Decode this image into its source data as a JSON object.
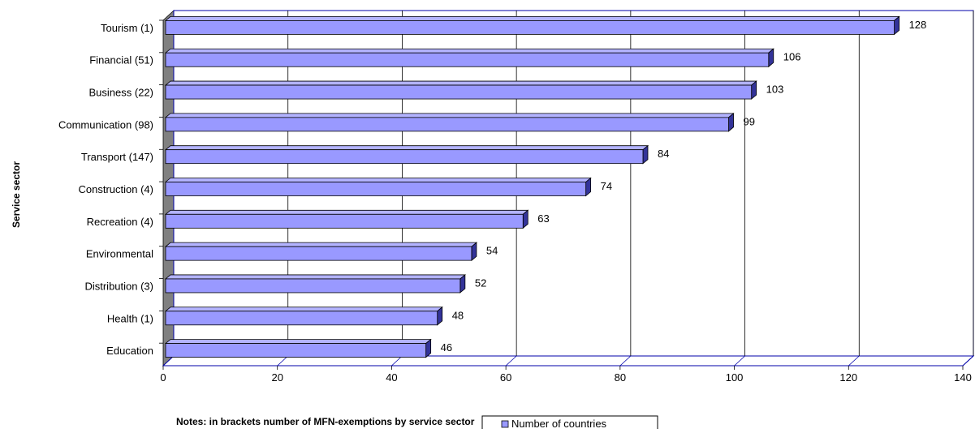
{
  "chart_data": {
    "type": "bar",
    "orientation": "horizontal",
    "three_d": true,
    "categories": [
      "Tourism (1)",
      "Financial (51)",
      "Business (22)",
      "Communication (98)",
      "Transport (147)",
      "Construction (4)",
      "Recreation (4)",
      "Environmental",
      "Distribution (3)",
      "Health (1)",
      "Education"
    ],
    "series": [
      {
        "name": "Number of countries",
        "values": [
          128,
          106,
          103,
          99,
          84,
          74,
          63,
          54,
          52,
          48,
          46
        ],
        "color": "#9999ff"
      }
    ],
    "ylabel": "Service sector",
    "xlabel": "",
    "xlim": [
      0,
      140
    ],
    "x_ticks": [
      0,
      20,
      40,
      60,
      80,
      100,
      120,
      140
    ],
    "grid": true,
    "legend_position": "bottom",
    "note": "Notes: in brackets number of MFN-exemptions by service sector",
    "colors": {
      "bar_fill": "#9999ff",
      "bar_top": "#b3b3ff",
      "bar_side": "#333399",
      "wall_left": "#808080",
      "frame": "#0000aa",
      "grid": "#000000"
    }
  }
}
